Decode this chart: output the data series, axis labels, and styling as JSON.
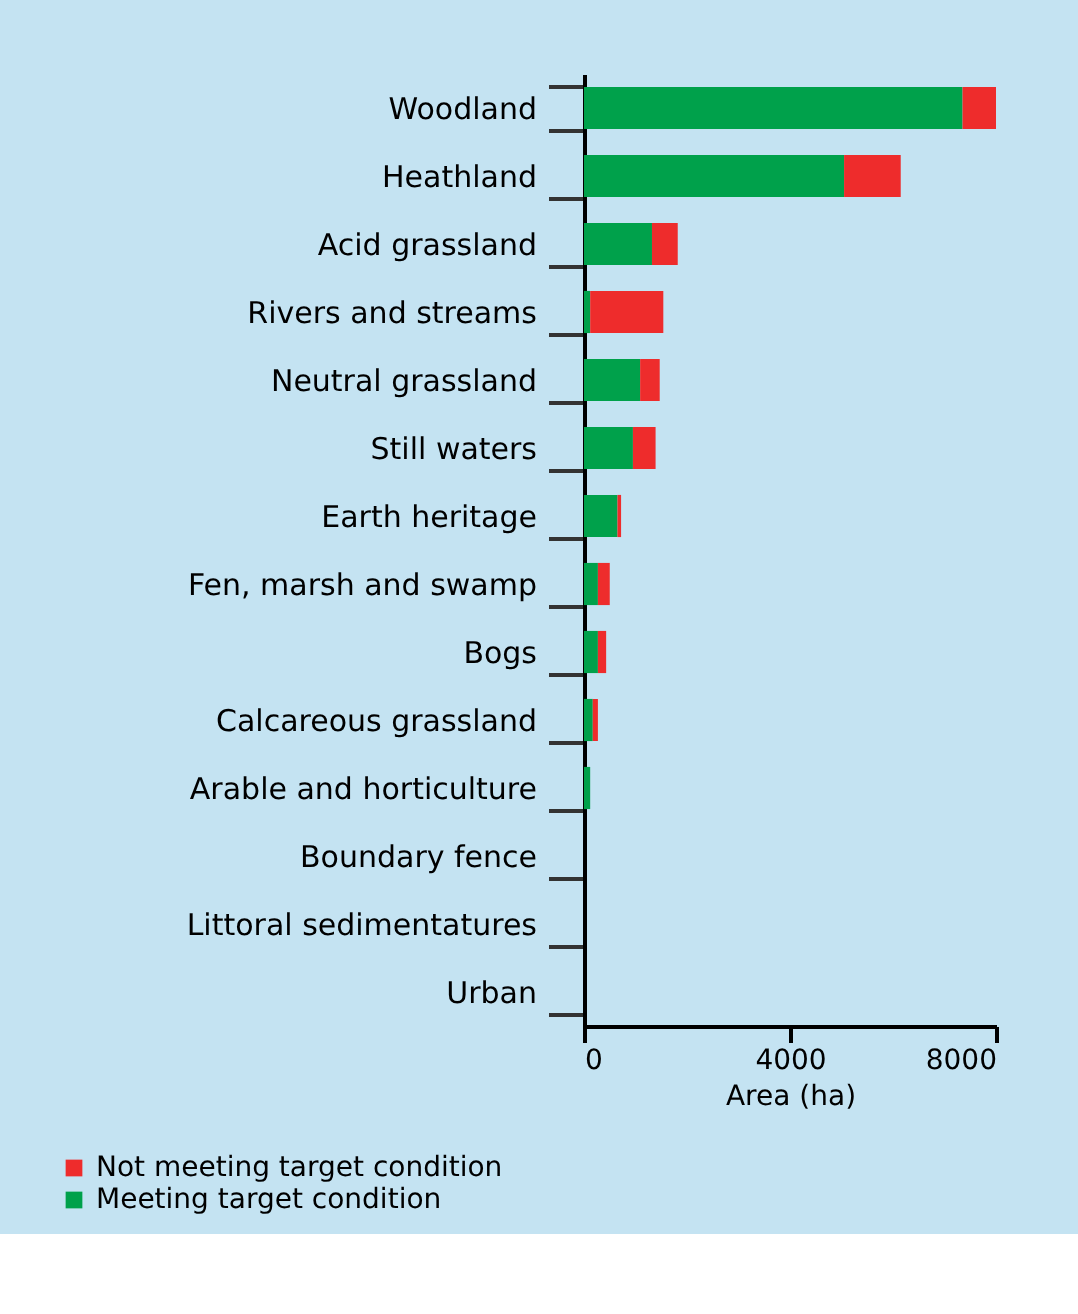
{
  "chart_data": {
    "type": "bar",
    "orientation": "horizontal",
    "stacked": true,
    "categories": [
      "Woodland",
      "Heathland",
      "Acid grassland",
      "Rivers and streams",
      "Neutral grassland",
      "Still waters",
      "Earth heritage",
      "Fen, marsh and swamp",
      "Bogs",
      "Calcareous grassland",
      "Arable and horticulture",
      "Boundary fence",
      "Littoral sedimentatures",
      "Urban"
    ],
    "series": [
      {
        "name": "Meeting target condition",
        "color": "#00a14b",
        "values": [
          7350,
          5050,
          1320,
          120,
          1090,
          950,
          650,
          270,
          270,
          170,
          120,
          0,
          0,
          0
        ]
      },
      {
        "name": "Not meeting target condition",
        "color": "#ee2c2c",
        "values": [
          650,
          1100,
          500,
          1420,
          380,
          440,
          70,
          230,
          160,
          100,
          0,
          0,
          0,
          0
        ]
      }
    ],
    "xlabel": "Area (ha)",
    "xlim": [
      0,
      8000
    ],
    "xticks": [
      0,
      4000,
      8000
    ],
    "grid": false,
    "legend": "bottom left"
  }
}
